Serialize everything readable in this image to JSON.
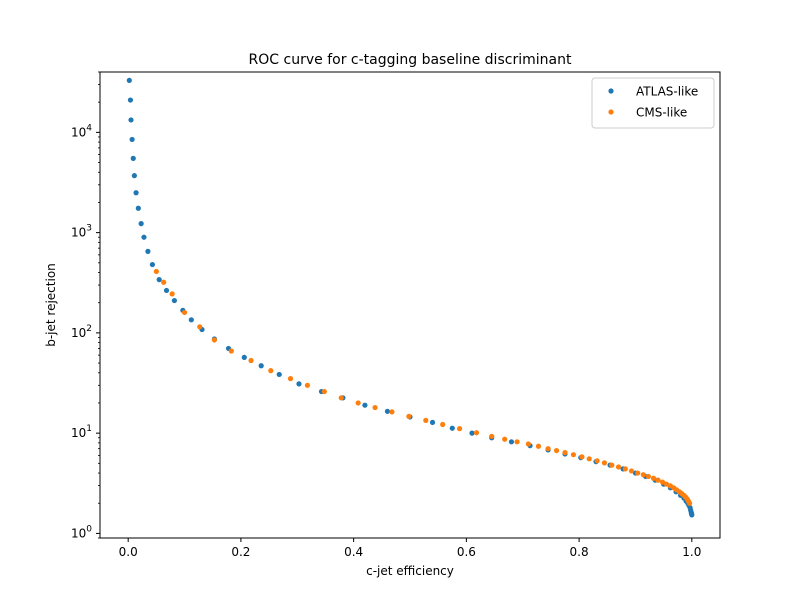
{
  "chart_data": {
    "type": "scatter",
    "title": "ROC curve for c-tagging baseline discriminant",
    "xlabel": "c-jet efficiency",
    "ylabel": "b-jet rejection",
    "xlim": [
      -0.05,
      1.05
    ],
    "ylim": [
      0.9,
      40000
    ],
    "yscale": "log",
    "grid": false,
    "legend_position": "upper-right",
    "x_ticks": [
      {
        "value": 0.0,
        "label": "0.0"
      },
      {
        "value": 0.2,
        "label": "0.2"
      },
      {
        "value": 0.4,
        "label": "0.4"
      },
      {
        "value": 0.6,
        "label": "0.6"
      },
      {
        "value": 0.8,
        "label": "0.8"
      },
      {
        "value": 1.0,
        "label": "1.0"
      }
    ],
    "y_ticks": [
      {
        "value": 1,
        "base": "10",
        "exp": "0"
      },
      {
        "value": 10,
        "base": "10",
        "exp": "1"
      },
      {
        "value": 100,
        "base": "10",
        "exp": "2"
      },
      {
        "value": 1000,
        "base": "10",
        "exp": "3"
      },
      {
        "value": 10000,
        "base": "10",
        "exp": "4"
      }
    ],
    "series": [
      {
        "name": "ATLAS-like",
        "color": "#1f77b4",
        "x": [
          0.002,
          0.004,
          0.005,
          0.007,
          0.009,
          0.011,
          0.014,
          0.018,
          0.023,
          0.028,
          0.035,
          0.043,
          0.055,
          0.068,
          0.082,
          0.097,
          0.112,
          0.131,
          0.153,
          0.178,
          0.206,
          0.236,
          0.268,
          0.303,
          0.343,
          0.381,
          0.42,
          0.46,
          0.5,
          0.54,
          0.575,
          0.61,
          0.645,
          0.68,
          0.713,
          0.745,
          0.775,
          0.803,
          0.83,
          0.855,
          0.878,
          0.9,
          0.918,
          0.935,
          0.95,
          0.962,
          0.972,
          0.98,
          0.986,
          0.99,
          0.993,
          0.995,
          0.997,
          0.998,
          0.999,
          0.9995,
          1.0
        ],
        "y": [
          33000,
          21000,
          13300,
          8500,
          5500,
          3700,
          2500,
          1750,
          1230,
          900,
          650,
          480,
          340,
          265,
          210,
          168,
          135,
          108,
          87,
          70,
          57,
          47,
          38.5,
          31,
          26,
          22.5,
          19,
          16.5,
          14.5,
          12.8,
          11.2,
          10,
          9,
          8.2,
          7.5,
          6.8,
          6.2,
          5.7,
          5.2,
          4.8,
          4.4,
          4.0,
          3.7,
          3.4,
          3.1,
          2.85,
          2.6,
          2.4,
          2.25,
          2.1,
          2.0,
          1.9,
          1.8,
          1.7,
          1.62,
          1.57,
          1.53
        ]
      },
      {
        "name": "CMS-like",
        "color": "#ff7f0e",
        "x": [
          0.05,
          0.063,
          0.078,
          0.1,
          0.127,
          0.153,
          0.183,
          0.218,
          0.253,
          0.288,
          0.318,
          0.348,
          0.378,
          0.408,
          0.438,
          0.468,
          0.498,
          0.528,
          0.558,
          0.588,
          0.618,
          0.645,
          0.668,
          0.69,
          0.71,
          0.728,
          0.745,
          0.76,
          0.775,
          0.79,
          0.805,
          0.818,
          0.832,
          0.845,
          0.858,
          0.87,
          0.882,
          0.893,
          0.904,
          0.914,
          0.923,
          0.932,
          0.94,
          0.948,
          0.955,
          0.962,
          0.968,
          0.973,
          0.978,
          0.982,
          0.986,
          0.989,
          0.992,
          0.994,
          0.996
        ],
        "y": [
          410,
          320,
          245,
          160,
          115,
          85,
          66,
          53,
          42,
          35,
          30,
          26,
          22.5,
          20,
          18,
          16.3,
          14.7,
          13.4,
          12.2,
          11.1,
          10.1,
          9.3,
          8.7,
          8.2,
          7.8,
          7.4,
          7.0,
          6.7,
          6.4,
          6.1,
          5.8,
          5.55,
          5.3,
          5.05,
          4.8,
          4.6,
          4.4,
          4.2,
          4.0,
          3.85,
          3.7,
          3.55,
          3.4,
          3.25,
          3.1,
          2.98,
          2.85,
          2.72,
          2.6,
          2.5,
          2.4,
          2.3,
          2.2,
          2.1,
          2.0
        ]
      }
    ]
  }
}
